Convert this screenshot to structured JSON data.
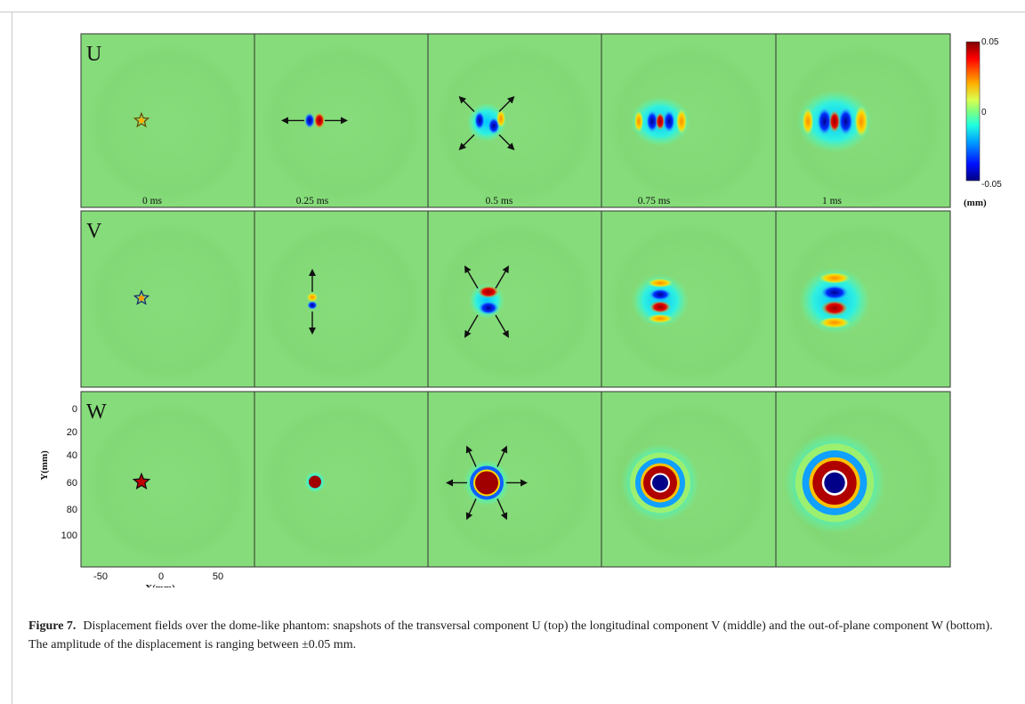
{
  "figure": {
    "rows": [
      {
        "label": "U",
        "component": "U",
        "pattern": "u"
      },
      {
        "label": "V",
        "component": "V",
        "pattern": "v"
      },
      {
        "label": "W",
        "component": "W",
        "pattern": "w"
      }
    ],
    "time_labels": [
      "0 ms",
      "0.25 ms",
      "0.5 ms",
      "0.75 ms",
      "1 ms"
    ],
    "colorbar": {
      "max_label": "0.05",
      "mid_label": "0",
      "min_label": "-0.05",
      "unit": "(mm)",
      "colormap": "jet",
      "range": [
        -0.05,
        0.05
      ]
    },
    "x_axis": {
      "title": "X(mm)",
      "ticks": [
        "-50",
        "0",
        "50"
      ]
    },
    "y_axis": {
      "title": "Y(mm)",
      "ticks": [
        "0",
        "20",
        "40",
        "60",
        "80",
        "100"
      ]
    },
    "colors": {
      "background_field": "#86dc7a",
      "border": "#333333",
      "arrow": "#111111"
    }
  },
  "caption": {
    "figure_number": "Figure 7.",
    "text": "Displacement fields over the dome-like phantom: snapshots of the transversal component U (top) the longitudinal component V (middle) and the out-of-plane component W (bottom). The amplitude of the displacement is ranging between ±0.05 mm."
  }
}
